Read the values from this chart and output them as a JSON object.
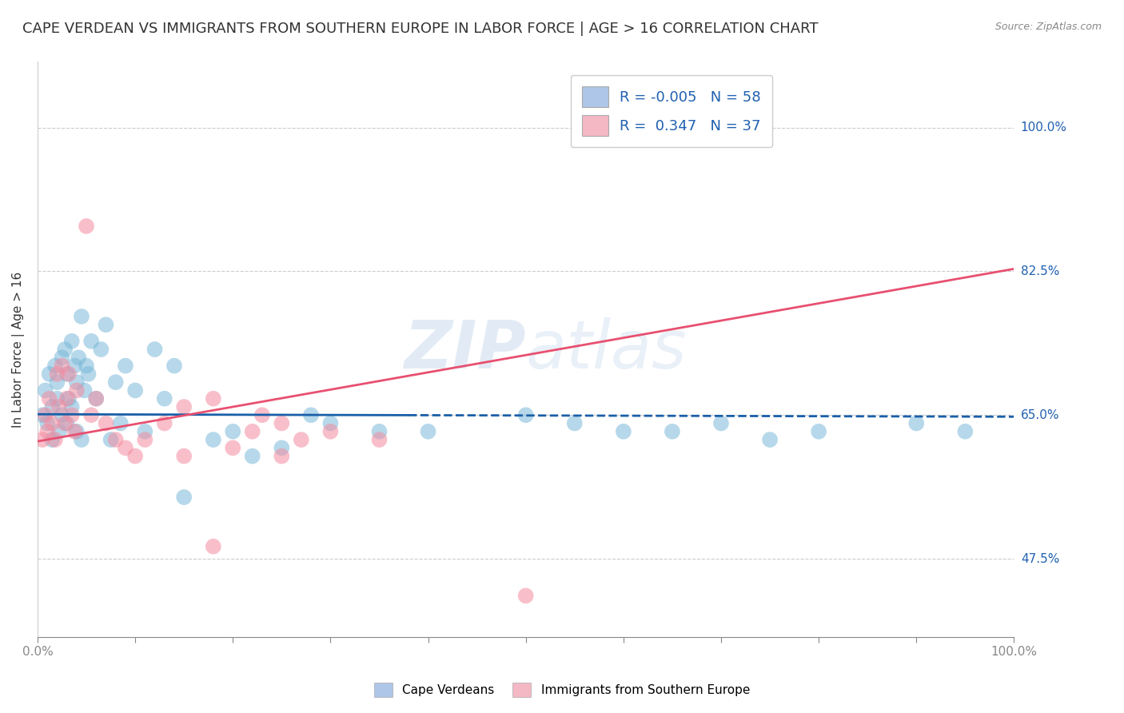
{
  "title": "CAPE VERDEAN VS IMMIGRANTS FROM SOUTHERN EUROPE IN LABOR FORCE | AGE > 16 CORRELATION CHART",
  "source": "Source: ZipAtlas.com",
  "ylabel": "In Labor Force | Age > 16",
  "xlim": [
    0.0,
    1.0
  ],
  "ylim": [
    0.38,
    1.08
  ],
  "yticks": [
    0.475,
    0.65,
    0.825,
    1.0
  ],
  "ytick_labels": [
    "47.5%",
    "65.0%",
    "82.5%",
    "100.0%"
  ],
  "xticks": [
    0.0,
    0.1,
    0.2,
    0.3,
    0.4,
    0.5,
    0.6,
    0.7,
    0.8,
    0.9,
    1.0
  ],
  "watermark": "ZIPAtlas",
  "blue_scatter_x": [
    0.005,
    0.008,
    0.01,
    0.012,
    0.015,
    0.015,
    0.018,
    0.02,
    0.02,
    0.022,
    0.025,
    0.025,
    0.028,
    0.03,
    0.03,
    0.032,
    0.035,
    0.035,
    0.038,
    0.04,
    0.04,
    0.042,
    0.045,
    0.045,
    0.048,
    0.05,
    0.052,
    0.055,
    0.06,
    0.065,
    0.07,
    0.075,
    0.08,
    0.085,
    0.09,
    0.1,
    0.11,
    0.12,
    0.13,
    0.14,
    0.15,
    0.18,
    0.2,
    0.22,
    0.25,
    0.28,
    0.3,
    0.35,
    0.4,
    0.5,
    0.55,
    0.6,
    0.65,
    0.7,
    0.75,
    0.8,
    0.9,
    0.95
  ],
  "blue_scatter_y": [
    0.65,
    0.68,
    0.64,
    0.7,
    0.66,
    0.62,
    0.71,
    0.67,
    0.69,
    0.63,
    0.72,
    0.65,
    0.73,
    0.64,
    0.7,
    0.67,
    0.74,
    0.66,
    0.71,
    0.63,
    0.69,
    0.72,
    0.77,
    0.62,
    0.68,
    0.71,
    0.7,
    0.74,
    0.67,
    0.73,
    0.76,
    0.62,
    0.69,
    0.64,
    0.71,
    0.68,
    0.63,
    0.73,
    0.67,
    0.71,
    0.55,
    0.62,
    0.63,
    0.6,
    0.61,
    0.65,
    0.64,
    0.63,
    0.63,
    0.65,
    0.64,
    0.63,
    0.63,
    0.64,
    0.62,
    0.63,
    0.64,
    0.63
  ],
  "pink_scatter_x": [
    0.005,
    0.008,
    0.01,
    0.012,
    0.015,
    0.018,
    0.02,
    0.022,
    0.025,
    0.028,
    0.03,
    0.032,
    0.035,
    0.038,
    0.04,
    0.05,
    0.055,
    0.06,
    0.07,
    0.08,
    0.09,
    0.1,
    0.11,
    0.13,
    0.15,
    0.18,
    0.2,
    0.23,
    0.25,
    0.27,
    0.15,
    0.18,
    0.22,
    0.25,
    0.3,
    0.35,
    0.5
  ],
  "pink_scatter_y": [
    0.62,
    0.65,
    0.63,
    0.67,
    0.64,
    0.62,
    0.7,
    0.66,
    0.71,
    0.64,
    0.67,
    0.7,
    0.65,
    0.63,
    0.68,
    0.88,
    0.65,
    0.67,
    0.64,
    0.62,
    0.61,
    0.6,
    0.62,
    0.64,
    0.6,
    0.49,
    0.61,
    0.65,
    0.6,
    0.62,
    0.66,
    0.67,
    0.63,
    0.64,
    0.63,
    0.62,
    0.43
  ],
  "blue_line_intercept": 0.651,
  "blue_line_slope": -0.003,
  "blue_line_solid_end": 0.38,
  "pink_line_intercept": 0.618,
  "pink_line_slope": 0.21,
  "grid_color": "#cccccc",
  "bg_color": "#ffffff",
  "blue_color": "#7ab8d9",
  "pink_color": "#f48ca0",
  "blue_line_color": "#1a5fa8",
  "pink_line_color": "#e85070",
  "scatter_size": 200,
  "scatter_alpha": 0.55,
  "title_fontsize": 13,
  "axis_label_fontsize": 11,
  "tick_fontsize": 11,
  "legend_fontsize": 13,
  "right_tick_color": "#2060b0"
}
